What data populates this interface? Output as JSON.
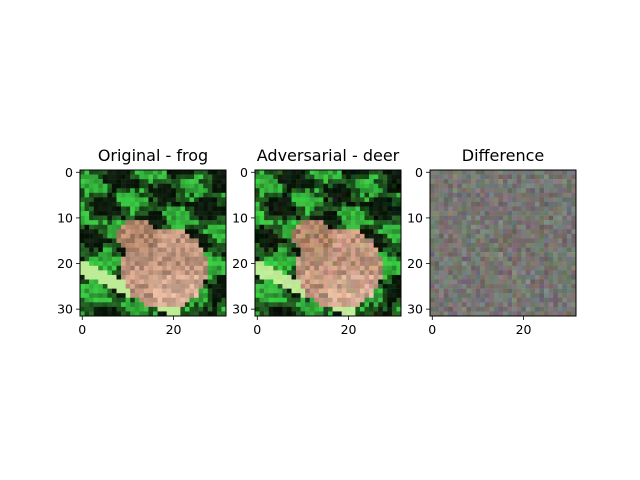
{
  "chart_data": [
    {
      "type": "heatmap",
      "panel": "original",
      "title": "Original - frog",
      "image_size": [
        32,
        32
      ],
      "xticks": [
        0,
        20
      ],
      "yticks": [
        0,
        10,
        20,
        30
      ],
      "xlim": [
        -0.5,
        31.5
      ],
      "ylim": [
        31.5,
        -0.5
      ],
      "content": "frog photo among green foliage"
    },
    {
      "type": "heatmap",
      "panel": "adversarial",
      "title": "Adversarial - deer",
      "image_size": [
        32,
        32
      ],
      "xticks": [
        0,
        20
      ],
      "yticks": [
        0,
        10,
        20,
        30
      ],
      "xlim": [
        -0.5,
        31.5
      ],
      "ylim": [
        31.5,
        -0.5
      ],
      "content": "frog photo with imperceptible perturbation"
    },
    {
      "type": "heatmap",
      "panel": "difference",
      "title": "Difference",
      "image_size": [
        32,
        32
      ],
      "xticks": [
        0,
        20
      ],
      "yticks": [
        0,
        10,
        20,
        30
      ],
      "xlim": [
        -0.5,
        31.5
      ],
      "ylim": [
        31.5,
        -0.5
      ],
      "content": "grey noise pattern with faint pink and green pixels"
    }
  ],
  "colors": {
    "frog_skin": "#c99a7e",
    "frog_light": "#e2b7a0",
    "leaf_bright": "#4ec35a",
    "leaf_dark": "#0f2e12",
    "background": "#0a120a",
    "diff_grey": "#7b7a76"
  }
}
